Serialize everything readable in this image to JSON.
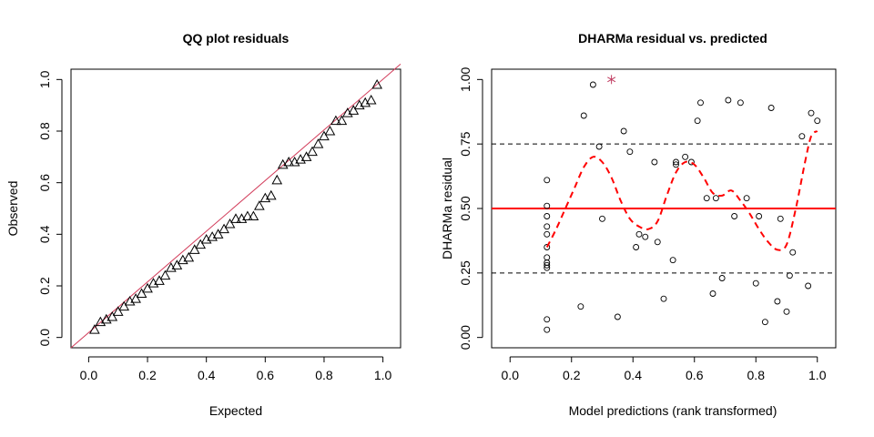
{
  "chart_data": [
    {
      "type": "scatter",
      "title": "QQ plot residuals",
      "xlabel": "Expected",
      "ylabel": "Observed",
      "xlim": [
        -0.06,
        1.06
      ],
      "ylim": [
        -0.04,
        1.04
      ],
      "xticks": [
        "0.0",
        "0.2",
        "0.4",
        "0.6",
        "0.8",
        "1.0"
      ],
      "yticks": [
        "0.0",
        "0.2",
        "0.4",
        "0.6",
        "0.8",
        "1.0"
      ],
      "marker": "triangle",
      "reference_line": {
        "from": [
          -0.06,
          -0.04
        ],
        "to": [
          1.06,
          1.06
        ],
        "color": "#d23c5a"
      },
      "series": [
        {
          "x": [
            0.02,
            0.04,
            0.06,
            0.08,
            0.1,
            0.12,
            0.14,
            0.16,
            0.18,
            0.2,
            0.22,
            0.24,
            0.26,
            0.28,
            0.3,
            0.32,
            0.34,
            0.36,
            0.38,
            0.4,
            0.42,
            0.44,
            0.46,
            0.48,
            0.5,
            0.52,
            0.54,
            0.56,
            0.58,
            0.6,
            0.62,
            0.64,
            0.66,
            0.68,
            0.7,
            0.72,
            0.74,
            0.76,
            0.78,
            0.8,
            0.82,
            0.84,
            0.86,
            0.88,
            0.9,
            0.92,
            0.94,
            0.96,
            0.98
          ],
          "y": [
            0.03,
            0.06,
            0.07,
            0.08,
            0.1,
            0.12,
            0.14,
            0.15,
            0.17,
            0.19,
            0.21,
            0.22,
            0.24,
            0.27,
            0.28,
            0.3,
            0.31,
            0.34,
            0.36,
            0.38,
            0.39,
            0.4,
            0.42,
            0.44,
            0.46,
            0.46,
            0.47,
            0.47,
            0.51,
            0.54,
            0.55,
            0.61,
            0.67,
            0.68,
            0.68,
            0.69,
            0.7,
            0.72,
            0.75,
            0.78,
            0.8,
            0.84,
            0.84,
            0.87,
            0.88,
            0.9,
            0.91,
            0.92,
            0.98
          ]
        }
      ]
    },
    {
      "type": "scatter",
      "title": "DHARMa residual vs. predicted",
      "xlabel": "Model predictions (rank transformed)",
      "ylabel": "DHARMa residual",
      "xlim": [
        -0.06,
        1.06
      ],
      "ylim": [
        -0.04,
        1.04
      ],
      "xticks": [
        "0.0",
        "0.2",
        "0.4",
        "0.6",
        "0.8",
        "1.0"
      ],
      "yticks": [
        "0.00",
        "0.25",
        "0.50",
        "0.75",
        "1.00"
      ],
      "marker": "circle",
      "reference_lines": [
        {
          "y": 0.25,
          "style": "dashed",
          "color": "#000000"
        },
        {
          "y": 0.5,
          "style": "solid",
          "color": "#ff0000"
        },
        {
          "y": 0.75,
          "style": "dashed",
          "color": "#000000"
        }
      ],
      "series": [
        {
          "x": [
            0.12,
            0.12,
            0.12,
            0.12,
            0.12,
            0.12,
            0.12,
            0.12,
            0.12,
            0.12,
            0.12,
            0.12,
            0.23,
            0.24,
            0.27,
            0.29,
            0.3,
            0.35,
            0.37,
            0.39,
            0.41,
            0.42,
            0.44,
            0.47,
            0.48,
            0.5,
            0.53,
            0.54,
            0.54,
            0.57,
            0.59,
            0.61,
            0.62,
            0.64,
            0.66,
            0.67,
            0.69,
            0.71,
            0.73,
            0.75,
            0.77,
            0.8,
            0.81,
            0.83,
            0.85,
            0.87,
            0.88,
            0.9,
            0.91,
            0.92,
            0.95,
            0.97,
            0.98,
            1.0
          ],
          "y": [
            0.03,
            0.07,
            0.27,
            0.29,
            0.31,
            0.35,
            0.4,
            0.43,
            0.47,
            0.51,
            0.61,
            0.28,
            0.12,
            0.86,
            0.98,
            0.74,
            0.46,
            0.08,
            0.8,
            0.72,
            0.35,
            0.4,
            0.39,
            0.68,
            0.37,
            0.15,
            0.3,
            0.67,
            0.68,
            0.7,
            0.68,
            0.84,
            0.91,
            0.54,
            0.17,
            0.54,
            0.23,
            0.92,
            0.47,
            0.91,
            0.54,
            0.21,
            0.47,
            0.06,
            0.89,
            0.14,
            0.46,
            0.1,
            0.24,
            0.33,
            0.78,
            0.2,
            0.87,
            0.84
          ]
        }
      ],
      "outlier": {
        "x": 0.33,
        "y": 1.0,
        "marker": "asterisk",
        "color": "#c03c60"
      },
      "smooth_line": {
        "style": "dashed",
        "color": "#ff0000",
        "x": [
          0.12,
          0.15,
          0.18,
          0.21,
          0.24,
          0.27,
          0.3,
          0.33,
          0.36,
          0.39,
          0.42,
          0.45,
          0.48,
          0.51,
          0.54,
          0.57,
          0.6,
          0.63,
          0.66,
          0.69,
          0.72,
          0.75,
          0.78,
          0.81,
          0.84,
          0.87,
          0.9,
          0.93,
          0.96,
          0.98,
          1.0
        ],
        "y": [
          0.35,
          0.42,
          0.5,
          0.58,
          0.66,
          0.7,
          0.68,
          0.62,
          0.53,
          0.46,
          0.43,
          0.42,
          0.45,
          0.55,
          0.64,
          0.68,
          0.67,
          0.62,
          0.56,
          0.55,
          0.57,
          0.53,
          0.48,
          0.42,
          0.37,
          0.34,
          0.36,
          0.5,
          0.68,
          0.78,
          0.8
        ]
      }
    }
  ]
}
